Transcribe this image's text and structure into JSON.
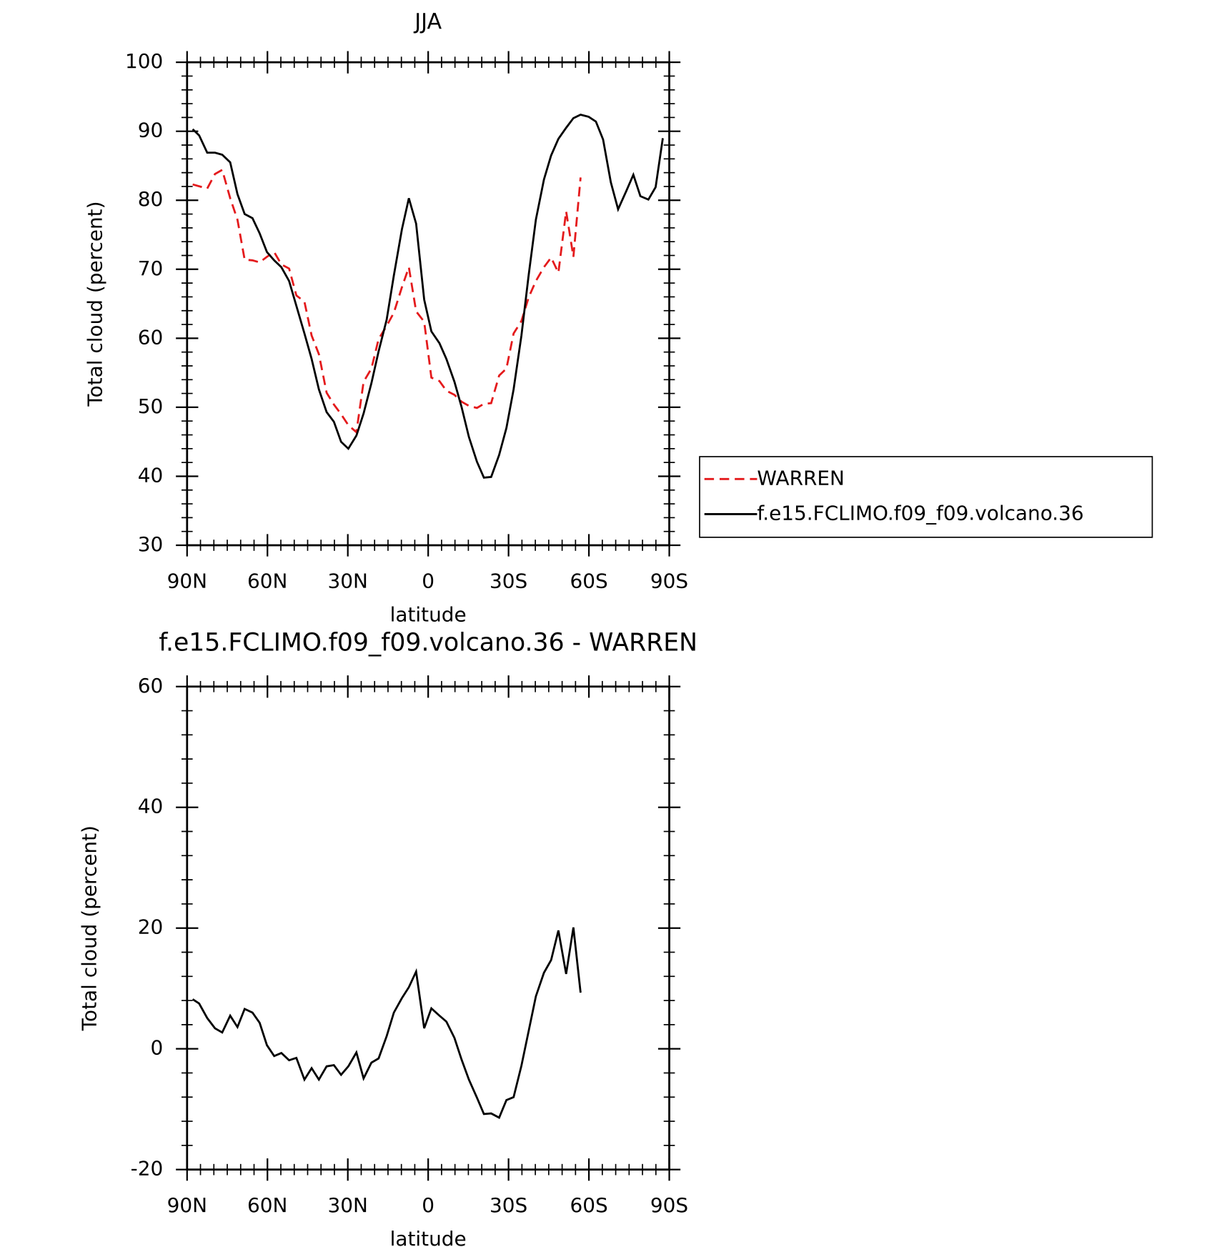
{
  "chart_data": [
    {
      "type": "line",
      "title": "JJA",
      "xlabel": "latitude",
      "ylabel": "Total cloud (percent)",
      "xlim": [
        90,
        -90
      ],
      "xticks": [
        {
          "value": 90,
          "label": "90N"
        },
        {
          "value": 60,
          "label": "60N"
        },
        {
          "value": 30,
          "label": "30N"
        },
        0,
        {
          "value": -30,
          "label": "30S"
        },
        {
          "value": -60,
          "label": "60S"
        },
        {
          "value": -90,
          "label": "90S"
        }
      ],
      "ylim": [
        30,
        100
      ],
      "yticks": [
        30,
        40,
        50,
        60,
        70,
        80,
        90,
        100
      ],
      "legend": "right",
      "series": [
        {
          "name": "WARREN",
          "color": "#e41a1c",
          "dash": true,
          "x": [
            87.9,
            82.5,
            79.6,
            76.9,
            73.9,
            71.2,
            68.5,
            65.6,
            62.9,
            60.2,
            57.5,
            54.8,
            51.9,
            49.2,
            46.2,
            43.5,
            40.8,
            37.9,
            35.2,
            32.5,
            29.8,
            26.8,
            24.1,
            21.2,
            18.5,
            15.5,
            12.8,
            9.8,
            7.2,
            4.5,
            1.5,
            -1.2,
            -4.2,
            -6.8,
            -9.8,
            -12.5,
            -15.2,
            -18.2,
            -20.8,
            -23.5,
            -26.5,
            -29.2,
            -31.9,
            -34.8,
            -37.5,
            -40.2,
            -43.2,
            -45.9,
            -48.6,
            -51.5,
            -54.2,
            -56.9
          ],
          "values": [
            82.3,
            81.7,
            83.8,
            84.4,
            80.3,
            77.2,
            71.4,
            71.3,
            71.0,
            71.8,
            72.5,
            70.7,
            70.1,
            66.2,
            65.3,
            60.4,
            57.7,
            52.1,
            50.4,
            49.0,
            47.4,
            46.4,
            53.7,
            55.6,
            59.9,
            61.8,
            63.7,
            67.4,
            70.3,
            63.9,
            62.4,
            54.3,
            53.8,
            52.4,
            51.8,
            50.8,
            50.2,
            49.9,
            50.5,
            50.6,
            54.6,
            55.6,
            60.7,
            62.5,
            65.9,
            68.3,
            70.3,
            71.7,
            69.5,
            78.4,
            71.8,
            83.3
          ]
        },
        {
          "name": "f.e15.FCLIMO.f09_f09.volcano.36",
          "color": "#000000",
          "dash": false,
          "x": [
            87.9,
            85.5,
            82.5,
            79.6,
            76.9,
            73.9,
            71.2,
            68.5,
            65.6,
            62.9,
            60.2,
            57.5,
            54.8,
            51.9,
            49.2,
            46.2,
            43.5,
            40.8,
            37.9,
            35.2,
            32.5,
            29.8,
            26.8,
            24.1,
            21.2,
            18.5,
            15.5,
            12.8,
            9.8,
            7.2,
            4.5,
            1.5,
            -1.2,
            -4.2,
            -6.8,
            -9.8,
            -12.5,
            -15.2,
            -18.2,
            -20.8,
            -23.5,
            -26.5,
            -29.2,
            -31.9,
            -34.8,
            -37.5,
            -40.2,
            -43.2,
            -45.9,
            -48.6,
            -51.5,
            -54.2,
            -56.9,
            -59.9,
            -62.6,
            -65.3,
            -68.2,
            -70.9,
            -73.9,
            -76.6,
            -79.2,
            -82.2,
            -84.9,
            -87.6
          ],
          "values": [
            90.3,
            89.4,
            86.9,
            86.9,
            86.6,
            85.5,
            80.9,
            78.0,
            77.4,
            75.2,
            72.5,
            71.3,
            70.3,
            68.3,
            64.7,
            60.7,
            57.0,
            52.6,
            49.3,
            47.9,
            45.0,
            44.0,
            45.9,
            49.1,
            53.5,
            58.1,
            62.7,
            69.1,
            75.8,
            80.3,
            76.6,
            65.6,
            61.0,
            59.3,
            57.0,
            53.7,
            50.0,
            45.7,
            42.1,
            39.8,
            39.9,
            43.1,
            47.0,
            52.6,
            60.4,
            69.1,
            77.2,
            83.0,
            86.5,
            88.9,
            90.5,
            91.9,
            92.4,
            92.1,
            91.4,
            88.8,
            82.6,
            78.7,
            81.3,
            83.7,
            80.6,
            80.1,
            81.9,
            89.0
          ]
        }
      ]
    },
    {
      "type": "line",
      "title": "f.e15.FCLIMO.f09_f09.volcano.36 - WARREN",
      "xlabel": "latitude",
      "ylabel": "Total cloud (percent)",
      "xlim": [
        90,
        -90
      ],
      "xticks": [
        {
          "value": 90,
          "label": "90N"
        },
        {
          "value": 60,
          "label": "60N"
        },
        {
          "value": 30,
          "label": "30N"
        },
        0,
        {
          "value": -30,
          "label": "30S"
        },
        {
          "value": -60,
          "label": "60S"
        },
        {
          "value": -90,
          "label": "90S"
        }
      ],
      "ylim": [
        -20,
        60
      ],
      "yticks": [
        -20,
        0,
        20,
        40,
        60
      ],
      "series": [
        {
          "color": "#000000",
          "dash": false,
          "x": [
            87.9,
            85.5,
            82.5,
            79.6,
            76.9,
            73.9,
            71.2,
            68.5,
            65.6,
            62.9,
            60.2,
            57.5,
            54.8,
            51.9,
            49.2,
            46.2,
            43.5,
            40.8,
            37.9,
            35.2,
            32.5,
            29.8,
            26.8,
            24.1,
            21.2,
            18.5,
            15.5,
            12.8,
            9.8,
            7.2,
            4.5,
            1.5,
            -1.2,
            -4.2,
            -6.8,
            -9.8,
            -12.5,
            -15.2,
            -18.2,
            -20.8,
            -23.5,
            -26.5,
            -29.2,
            -31.9,
            -34.8,
            -37.5,
            -40.2,
            -43.2,
            -45.9,
            -48.6,
            -51.5,
            -54.2,
            -56.9
          ],
          "values": [
            8.2,
            7.5,
            5.1,
            3.4,
            2.7,
            5.5,
            3.6,
            6.6,
            6.0,
            4.3,
            0.6,
            -1.2,
            -0.7,
            -1.9,
            -1.5,
            -5.1,
            -3.2,
            -5.1,
            -2.9,
            -2.7,
            -4.3,
            -2.9,
            -0.6,
            -4.9,
            -2.3,
            -1.6,
            2.1,
            6.0,
            8.4,
            10.2,
            12.8,
            3.4,
            6.7,
            5.5,
            4.5,
            1.8,
            -1.8,
            -5.1,
            -8.1,
            -10.8,
            -10.7,
            -11.4,
            -8.5,
            -8.0,
            -2.8,
            2.9,
            8.7,
            12.6,
            14.7,
            19.6,
            12.4,
            20.1,
            9.3
          ]
        }
      ]
    }
  ]
}
